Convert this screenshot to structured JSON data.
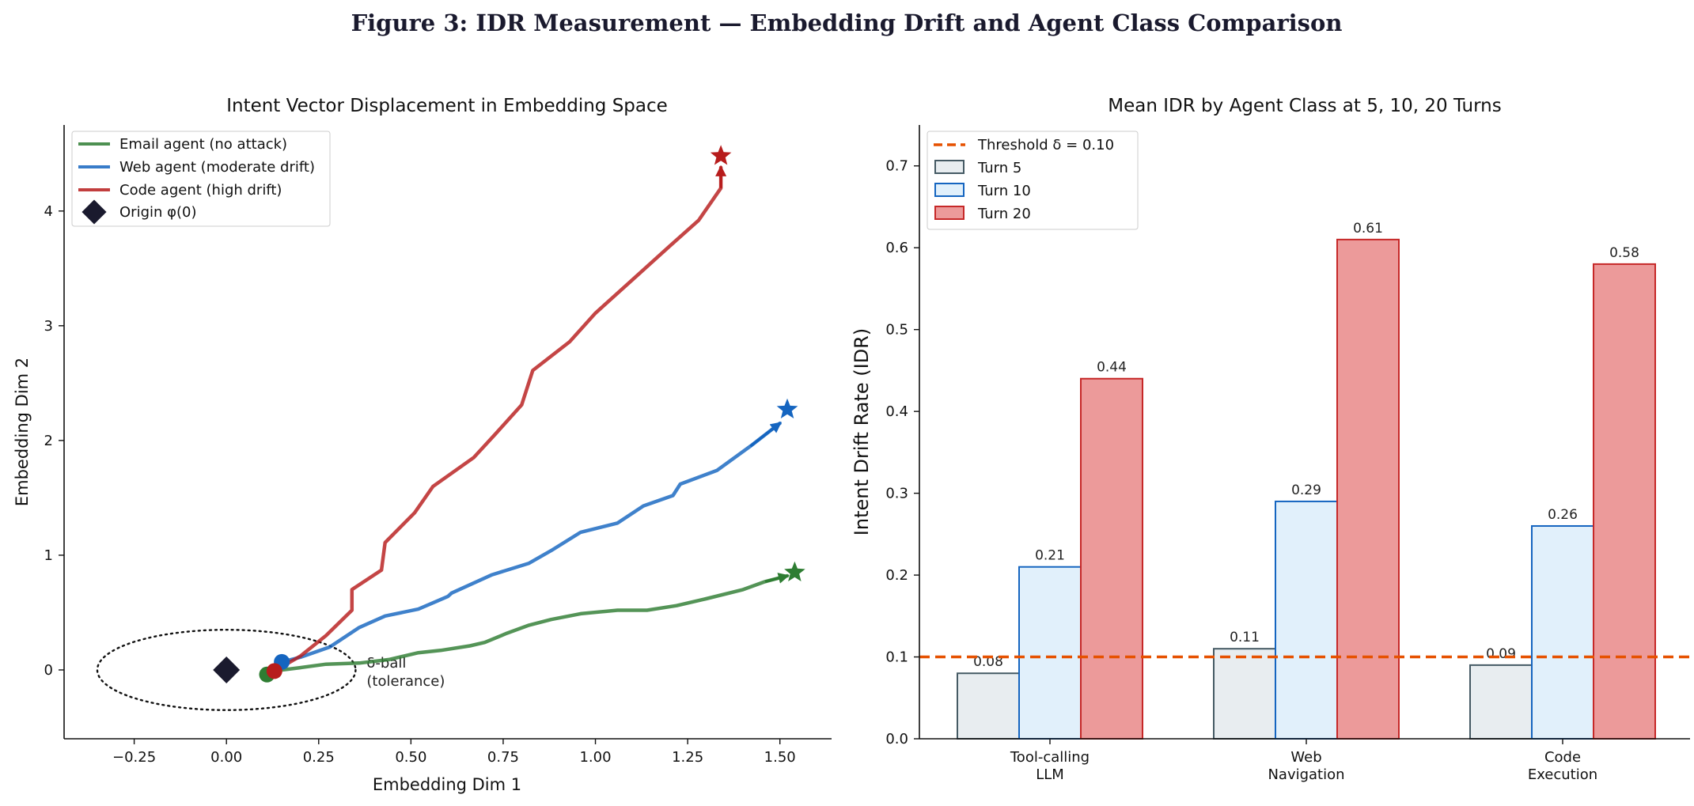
{
  "figure_title": "Figure 3: IDR Measurement — Embedding Drift and Agent Class Comparison",
  "colors": {
    "title": "#1a1a2e",
    "email": "#2e7d32",
    "web": "#1565c0",
    "code": "#b71c1c",
    "origin": "#1a1a2e",
    "threshold": "#e65100"
  },
  "chart_data": [
    {
      "type": "line",
      "title": "Intent Vector Displacement in Embedding Space",
      "xlabel": "Embedding Dim 1",
      "ylabel": "Embedding Dim 2",
      "xlim": [
        -0.44,
        1.64
      ],
      "ylim": [
        -0.6,
        4.75
      ],
      "xticks": [
        -0.25,
        0.0,
        0.25,
        0.5,
        0.75,
        1.0,
        1.25,
        1.5
      ],
      "xtick_labels": [
        "−0.25",
        "0.00",
        "0.25",
        "0.50",
        "0.75",
        "1.00",
        "1.25",
        "1.50"
      ],
      "yticks": [
        0,
        1,
        2,
        3,
        4
      ],
      "ytick_labels": [
        "0",
        "1",
        "2",
        "3",
        "4"
      ],
      "grid": false,
      "legend_position": "top-left",
      "origin": {
        "label": "Origin φ(0)",
        "x": 0.0,
        "y": 0.0
      },
      "tolerance_ball": {
        "center": [
          0.0,
          0.0
        ],
        "rx": 0.35,
        "ry": 0.35,
        "label_line1": "δ-ball",
        "label_line2": "(tolerance)"
      },
      "series": [
        {
          "name": "Email agent (no attack)",
          "key": "email",
          "x": [
            0.11,
            0.15,
            0.2,
            0.27,
            0.36,
            0.44,
            0.52,
            0.58,
            0.66,
            0.7,
            0.76,
            0.82,
            0.88,
            0.96,
            1.06,
            1.14,
            1.22,
            1.3,
            1.4,
            1.46,
            1.52
          ],
          "y": [
            -0.04,
            0.0,
            0.02,
            0.05,
            0.06,
            0.09,
            0.15,
            0.17,
            0.21,
            0.24,
            0.32,
            0.39,
            0.44,
            0.49,
            0.52,
            0.52,
            0.56,
            0.62,
            0.7,
            0.77,
            0.82
          ],
          "end": [
            1.54,
            0.85
          ]
        },
        {
          "name": "Web agent (moderate drift)",
          "key": "web",
          "x": [
            0.15,
            0.2,
            0.28,
            0.36,
            0.43,
            0.52,
            0.6,
            0.61,
            0.72,
            0.82,
            0.88,
            0.96,
            1.06,
            1.13,
            1.21,
            1.23,
            1.33,
            1.42,
            1.5
          ],
          "y": [
            0.07,
            0.11,
            0.2,
            0.37,
            0.47,
            0.53,
            0.64,
            0.67,
            0.83,
            0.93,
            1.04,
            1.2,
            1.28,
            1.43,
            1.52,
            1.62,
            1.74,
            1.95,
            2.15
          ],
          "end": [
            1.52,
            2.27
          ]
        },
        {
          "name": "Code agent (high drift)",
          "key": "code",
          "x": [
            0.13,
            0.2,
            0.27,
            0.34,
            0.34,
            0.42,
            0.43,
            0.51,
            0.56,
            0.67,
            0.73,
            0.8,
            0.83,
            0.93,
            1.0,
            1.1,
            1.2,
            1.28,
            1.34,
            1.34
          ],
          "y": [
            -0.01,
            0.12,
            0.3,
            0.52,
            0.7,
            0.87,
            1.11,
            1.37,
            1.6,
            1.85,
            2.06,
            2.31,
            2.61,
            2.86,
            3.11,
            3.4,
            3.69,
            3.92,
            4.2,
            4.38
          ],
          "end": [
            1.34,
            4.48
          ]
        }
      ]
    },
    {
      "type": "bar",
      "title": "Mean IDR by Agent Class at 5, 10, 20 Turns",
      "xlabel": "",
      "ylabel": "Intent Drift Rate (IDR)",
      "ylim": [
        0,
        0.75
      ],
      "yticks": [
        0.0,
        0.1,
        0.2,
        0.3,
        0.4,
        0.5,
        0.6,
        0.7
      ],
      "ytick_labels": [
        "0.0",
        "0.1",
        "0.2",
        "0.3",
        "0.4",
        "0.5",
        "0.6",
        "0.7"
      ],
      "grid": false,
      "legend_position": "top-left",
      "categories": [
        {
          "line1": "Tool-calling",
          "line2": "LLM"
        },
        {
          "line1": "Web",
          "line2": "Navigation"
        },
        {
          "line1": "Code",
          "line2": "Execution"
        }
      ],
      "threshold": {
        "label": "Threshold δ = 0.10",
        "value": 0.1
      },
      "series": [
        {
          "name": "Turn 5",
          "fill": "#e8edf0",
          "stroke": "#455a64",
          "values": [
            0.08,
            0.11,
            0.09
          ],
          "labels": [
            "0.08",
            "0.11",
            "0.09"
          ]
        },
        {
          "name": "Turn 10",
          "fill": "#e1f0fb",
          "stroke": "#1565c0",
          "values": [
            0.21,
            0.29,
            0.26
          ],
          "labels": [
            "0.21",
            "0.29",
            "0.26"
          ]
        },
        {
          "name": "Turn 20",
          "fill": "#ec9a9a",
          "stroke": "#c62828",
          "values": [
            0.44,
            0.61,
            0.58
          ],
          "labels": [
            "0.44",
            "0.61",
            "0.58"
          ]
        }
      ]
    }
  ]
}
